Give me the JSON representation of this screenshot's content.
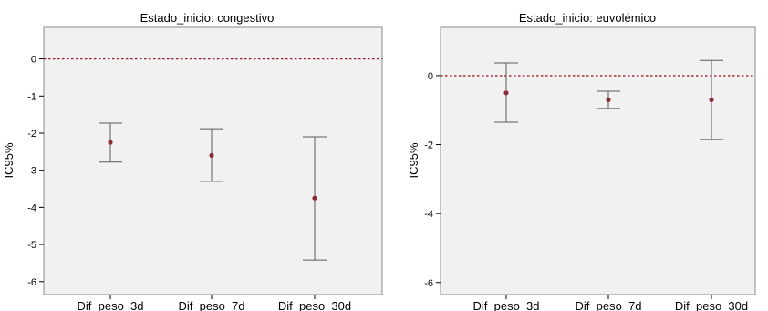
{
  "chart_data": [
    {
      "type": "errorbar",
      "title": "Estado_inicio: congestivo",
      "ylabel": "IC95%",
      "xlabel": "",
      "categories": [
        "Dif_peso_3d",
        "Dif_peso_7d",
        "Dif_peso_30d"
      ],
      "series": [
        {
          "mean": [
            -2.25,
            -2.6,
            -3.75
          ],
          "lower": [
            -2.78,
            -3.3,
            -5.42
          ],
          "upper": [
            -1.73,
            -1.88,
            -2.1
          ]
        }
      ],
      "reference_line": 0,
      "ylim": [
        -6.35,
        0.85
      ],
      "yticks": [
        "0",
        "-1",
        "-2",
        "-3",
        "-4",
        "-5",
        "-6"
      ],
      "grid": false,
      "colors": {
        "point": "#8b2b34",
        "reference": "#a0202a",
        "whisker": "#5a5a5a",
        "plot_bg": "#f2f1f1"
      }
    },
    {
      "type": "errorbar",
      "title": "Estado_inicio: euvolémico",
      "ylabel": "IC95%",
      "xlabel": "",
      "categories": [
        "Dif_peso_3d",
        "Dif_peso_7d",
        "Dif_peso_30d"
      ],
      "series": [
        {
          "mean": [
            -0.5,
            -0.7,
            -0.7
          ],
          "lower": [
            -1.35,
            -0.95,
            -1.85
          ],
          "upper": [
            0.37,
            -0.45,
            0.44
          ]
        }
      ],
      "reference_line": 0,
      "ylim": [
        -6.35,
        1.4
      ],
      "yticks": [
        "0",
        "-2",
        "-4",
        "-6"
      ],
      "grid": false,
      "colors": {
        "point": "#8b2b34",
        "reference": "#a0202a",
        "whisker": "#5a5a5a",
        "plot_bg": "#f2f1f1"
      }
    }
  ]
}
